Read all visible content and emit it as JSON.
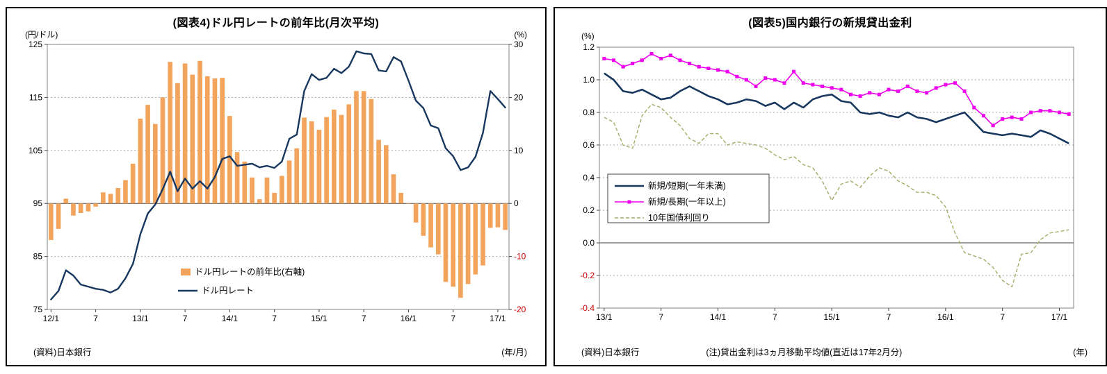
{
  "chart_data": [
    {
      "type": "bar+line",
      "title": "(図表4)ドル円レートの前年比(月次平均)",
      "left_axis_label": "(円/ドル)",
      "right_axis_label": "(%)",
      "x_axis_label": "(年/月)",
      "source": "(資料)日本銀行",
      "left_ylim": [
        75,
        125
      ],
      "right_ylim": [
        -20,
        30
      ],
      "left_ticks": [
        125,
        115,
        105,
        95,
        85,
        75
      ],
      "right_ticks": [
        30,
        20,
        10,
        0,
        -10,
        -20
      ],
      "x_ticks": [
        "12/1",
        "7",
        "13/1",
        "7",
        "14/1",
        "7",
        "15/1",
        "7",
        "16/1",
        "7",
        "17/1"
      ],
      "x_tick_interval": 6,
      "months_start": "2012/1",
      "months_end": "2017/2",
      "legend": [
        "ドル円レートの前年比(右軸)",
        "ドル円レート"
      ],
      "bar_series_name": "ドル円レートの前年比(右軸)",
      "line_series_name": "ドル円レート",
      "bar_values": [
        -6.9,
        -4.8,
        0.9,
        -2.3,
        -1.8,
        -1.5,
        -0.6,
        2.1,
        1.8,
        2.9,
        4.4,
        7.5,
        16.0,
        18.6,
        15.0,
        20.0,
        26.7,
        22.7,
        26.4,
        24.3,
        26.9,
        24.0,
        23.6,
        23.7,
        16.5,
        9.7,
        7.9,
        4.9,
        0.8,
        4.9,
        2.0,
        5.2,
        8.1,
        10.4,
        16.2,
        15.5,
        13.9,
        16.3,
        17.7,
        16.7,
        18.7,
        21.2,
        21.2,
        19.7,
        12.0,
        11.0,
        5.5,
        2.0,
        -0.1,
        -3.6,
        -6.1,
        -8.3,
        -9.6,
        -14.8,
        -15.7,
        -17.8,
        -15.2,
        -13.4,
        -11.7,
        -4.6,
        -4.5,
        -5.0
      ],
      "line_values": [
        76.9,
        78.5,
        82.4,
        81.4,
        79.7,
        79.3,
        78.9,
        78.7,
        78.2,
        78.9,
        80.9,
        83.6,
        89.2,
        93.1,
        94.8,
        97.7,
        101.0,
        97.3,
        99.7,
        97.8,
        99.2,
        97.8,
        100.0,
        103.4,
        103.9,
        102.1,
        102.3,
        102.5,
        101.8,
        102.1,
        101.7,
        102.9,
        107.2,
        108.0,
        116.2,
        119.4,
        118.3,
        118.7,
        120.4,
        119.6,
        120.8,
        123.7,
        123.3,
        123.2,
        120.1,
        119.9,
        122.6,
        121.8,
        118.2,
        114.4,
        113.0,
        109.7,
        109.2,
        105.4,
        103.9,
        101.3,
        101.8,
        103.8,
        108.3,
        116.2,
        114.7,
        113.1
      ],
      "colors": {
        "bar": "#F2A45C",
        "line": "#17375E",
        "grid": "#AAAAAA",
        "frame": "#808080",
        "negative": "#CC0000"
      }
    },
    {
      "type": "line",
      "title": "(図表5)国内銀行の新規貸出金利",
      "y_axis_label": "(%)",
      "x_axis_label": "(年)",
      "source": "(資料)日本銀行",
      "note": "(注)貸出金利は3ヵ月移動平均値(直近は17年2月分)",
      "ylim": [
        -0.4,
        1.2
      ],
      "y_ticks": [
        1.2,
        1.0,
        0.8,
        0.6,
        0.4,
        0.2,
        0.0,
        -0.2,
        -0.4
      ],
      "x_ticks": [
        "13/1",
        "7",
        "14/1",
        "7",
        "15/1",
        "7",
        "16/1",
        "7",
        "17/1"
      ],
      "x_tick_interval": 6,
      "months_start": "2013/1",
      "months_end": "2017/2",
      "series": [
        {
          "key": "short-term",
          "name": "新規/短期(一年未満)",
          "color": "#17375E",
          "width": 2.6,
          "values": [
            1.04,
            1.0,
            0.93,
            0.92,
            0.94,
            0.91,
            0.88,
            0.89,
            0.93,
            0.96,
            0.93,
            0.9,
            0.88,
            0.85,
            0.86,
            0.88,
            0.87,
            0.84,
            0.86,
            0.82,
            0.86,
            0.83,
            0.88,
            0.9,
            0.91,
            0.87,
            0.86,
            0.8,
            0.79,
            0.8,
            0.78,
            0.77,
            0.8,
            0.77,
            0.76,
            0.74,
            0.76,
            0.78,
            0.8,
            0.74,
            0.68,
            0.67,
            0.66,
            0.67,
            0.66,
            0.65,
            0.69,
            0.67,
            0.64,
            0.61
          ]
        },
        {
          "key": "long-term",
          "name": "新規/長期(一年以上)",
          "color": "#EE00EE",
          "width": 1.6,
          "marker": "square",
          "values": [
            1.13,
            1.12,
            1.08,
            1.1,
            1.12,
            1.16,
            1.13,
            1.15,
            1.12,
            1.1,
            1.08,
            1.07,
            1.06,
            1.05,
            1.02,
            1.0,
            0.96,
            1.01,
            1.0,
            0.98,
            1.05,
            0.98,
            0.97,
            0.96,
            0.95,
            0.94,
            0.91,
            0.9,
            0.92,
            0.91,
            0.94,
            0.93,
            0.96,
            0.93,
            0.92,
            0.95,
            0.97,
            0.98,
            0.93,
            0.83,
            0.78,
            0.72,
            0.76,
            0.77,
            0.76,
            0.8,
            0.81,
            0.81,
            0.8,
            0.79
          ]
        },
        {
          "key": "jgb-10y",
          "name": "10年国債利回り",
          "color": "#A9A865",
          "width": 1.4,
          "dash": "5 3",
          "values": [
            0.77,
            0.74,
            0.6,
            0.58,
            0.78,
            0.85,
            0.83,
            0.77,
            0.72,
            0.64,
            0.61,
            0.67,
            0.67,
            0.6,
            0.62,
            0.61,
            0.6,
            0.58,
            0.54,
            0.51,
            0.53,
            0.48,
            0.46,
            0.38,
            0.26,
            0.36,
            0.38,
            0.34,
            0.41,
            0.46,
            0.44,
            0.38,
            0.35,
            0.31,
            0.31,
            0.29,
            0.22,
            0.06,
            -0.06,
            -0.08,
            -0.1,
            -0.15,
            -0.23,
            -0.27,
            -0.07,
            -0.06,
            0.02,
            0.06,
            0.07,
            0.08
          ]
        }
      ],
      "colors": {
        "grid": "#AAAAAA",
        "frame": "#808080",
        "negative": "#CC0000"
      }
    }
  ]
}
